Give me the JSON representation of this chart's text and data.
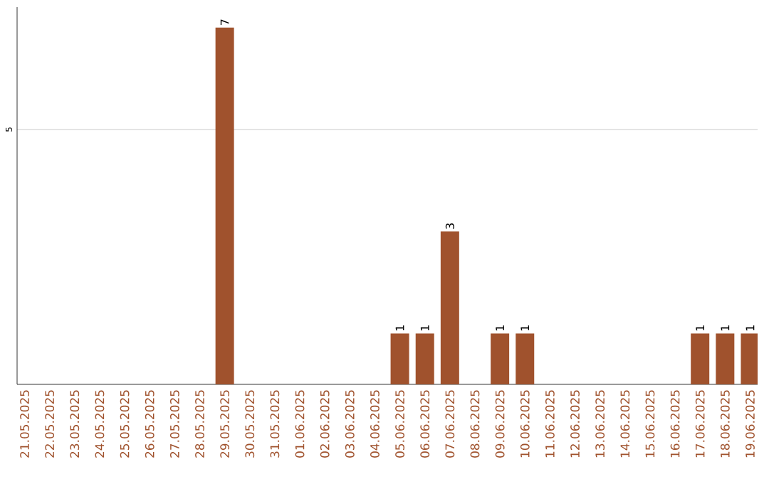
{
  "chart_data": {
    "type": "bar",
    "categories": [
      "21.05.2025",
      "22.05.2025",
      "23.05.2025",
      "24.05.2025",
      "25.05.2025",
      "26.05.2025",
      "27.05.2025",
      "28.05.2025",
      "29.05.2025",
      "30.05.2025",
      "31.05.2025",
      "01.06.2025",
      "02.06.2025",
      "03.06.2025",
      "04.06.2025",
      "05.06.2025",
      "06.06.2025",
      "07.06.2025",
      "08.06.2025",
      "09.06.2025",
      "10.06.2025",
      "11.06.2025",
      "12.06.2025",
      "13.06.2025",
      "14.06.2025",
      "15.06.2025",
      "16.06.2025",
      "17.06.2025",
      "18.06.2025",
      "19.06.2025"
    ],
    "values": [
      0,
      0,
      0,
      0,
      0,
      0,
      0,
      0,
      7,
      0,
      0,
      0,
      0,
      0,
      0,
      1,
      1,
      3,
      0,
      1,
      1,
      0,
      0,
      0,
      0,
      0,
      0,
      1,
      1,
      1
    ],
    "value_labels": [
      null,
      null,
      null,
      null,
      null,
      null,
      null,
      null,
      "7",
      null,
      null,
      null,
      null,
      null,
      null,
      "1",
      "1",
      "3",
      null,
      "1",
      "1",
      null,
      null,
      null,
      null,
      null,
      null,
      "1",
      "1",
      "1"
    ],
    "color": "#a0522d",
    "ylim": [
      0,
      7.4
    ],
    "yticks": [
      5
    ],
    "grid": "y"
  }
}
